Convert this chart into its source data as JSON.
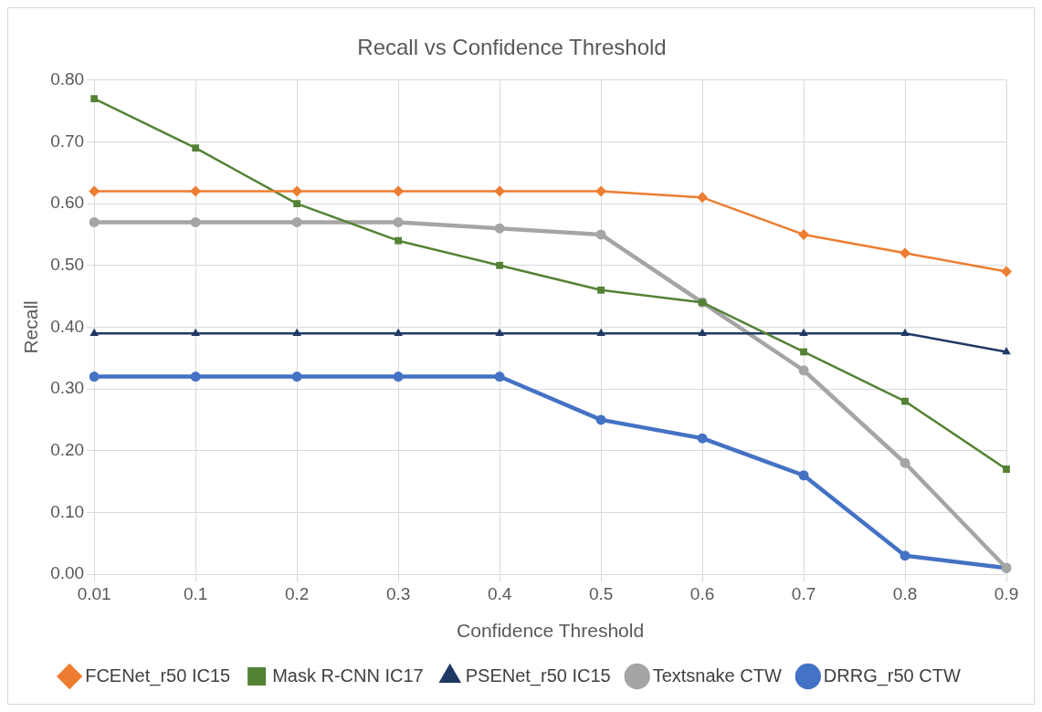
{
  "chart_data": {
    "type": "line",
    "title": "Recall vs Confidence Threshold",
    "xlabel": "Confidence Threshold",
    "ylabel": "Recall",
    "categories": [
      "0.01",
      "0.1",
      "0.2",
      "0.3",
      "0.4",
      "0.5",
      "0.6",
      "0.7",
      "0.8",
      "0.9"
    ],
    "series": [
      {
        "name": "FCENet_r50 IC15",
        "color": "#ed7d31",
        "marker": "diamond",
        "values": [
          0.62,
          0.62,
          0.62,
          0.62,
          0.62,
          0.62,
          0.61,
          0.55,
          0.52,
          0.49
        ]
      },
      {
        "name": "Mask R-CNN IC17",
        "color": "#548235",
        "marker": "square",
        "values": [
          0.77,
          0.69,
          0.6,
          0.54,
          0.5,
          0.46,
          0.44,
          0.36,
          0.28,
          0.17
        ]
      },
      {
        "name": "PSENet_r50 IC15",
        "color": "#203864",
        "marker": "triangle",
        "values": [
          0.39,
          0.39,
          0.39,
          0.39,
          0.39,
          0.39,
          0.39,
          0.39,
          0.39,
          0.36
        ]
      },
      {
        "name": "Textsnake CTW",
        "color": "#a5a5a5",
        "marker": "circle",
        "values": [
          0.57,
          0.57,
          0.57,
          0.57,
          0.56,
          0.55,
          0.44,
          0.33,
          0.18,
          0.01
        ]
      },
      {
        "name": "DRRG_r50 CTW",
        "color": "#4472c4",
        "marker": "circle",
        "values": [
          0.32,
          0.32,
          0.32,
          0.32,
          0.32,
          0.25,
          0.22,
          0.16,
          0.03,
          0.01
        ]
      }
    ],
    "ylim": [
      0,
      0.8
    ],
    "yticks": [
      {
        "value": 0,
        "label": "0.00"
      },
      {
        "value": 0.1,
        "label": "0.10"
      },
      {
        "value": 0.2,
        "label": "0.20"
      },
      {
        "value": 0.3,
        "label": "0.30"
      },
      {
        "value": 0.4,
        "label": "0.40"
      },
      {
        "value": 0.5,
        "label": "0.50"
      },
      {
        "value": 0.6,
        "label": "0.60"
      },
      {
        "value": 0.7,
        "label": "0.70"
      },
      {
        "value": 0.8,
        "label": "0.80"
      }
    ],
    "grid": true,
    "legend": "bottom",
    "line_style": "solid"
  }
}
